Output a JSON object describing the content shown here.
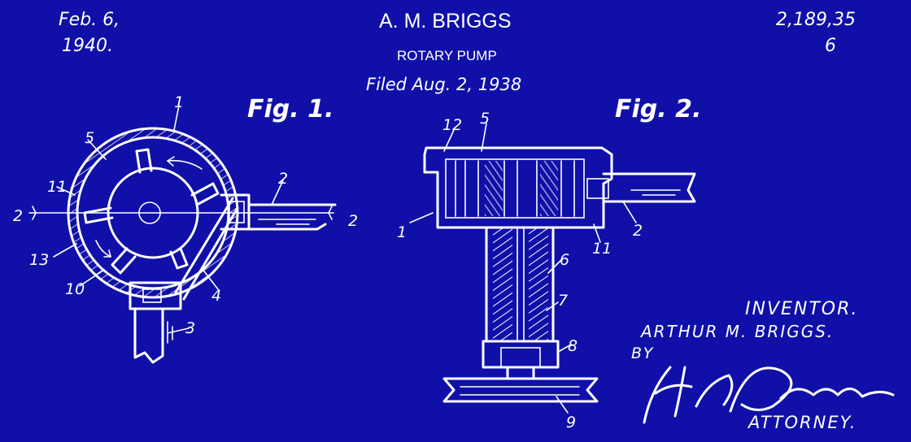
{
  "header": {
    "date_line1": "Feb. 6,",
    "date_line2": "1940.",
    "inventor_name": "A. M. BRIGGS",
    "title": "ROTARY PUMP",
    "filed": "Filed Aug. 2, 1938",
    "patent_line1": "2,189,35",
    "patent_line2": "6"
  },
  "figures": {
    "fig1_caption": "Fig. 1.",
    "fig2_caption": "Fig. 2.",
    "fig1_labels": {
      "l1": "1",
      "l2": "2",
      "l2_left": "2",
      "l2_right": "2",
      "l3": "3",
      "l4": "4",
      "l5": "5",
      "l10": "10",
      "l11": "11",
      "l13": "13"
    },
    "fig2_labels": {
      "l12": "12",
      "l5": "5",
      "l1": "1",
      "l2": "2",
      "l6": "6",
      "l7": "7",
      "l8": "8",
      "l9": "9",
      "l11": "11"
    }
  },
  "signature_block": {
    "inventor_heading": "INVENTOR.",
    "inventor_full": "ARTHUR M. BRIGGS.",
    "by": "BY",
    "attorney": "ATTORNEY."
  },
  "colors": {
    "background": "#1010a8",
    "ink": "#ffffff"
  }
}
